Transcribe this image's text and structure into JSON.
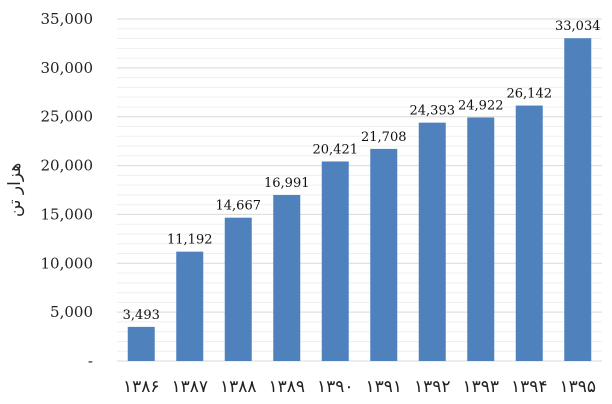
{
  "chart_data": {
    "type": "bar",
    "title": "",
    "xlabel": "",
    "ylabel": "هزار تن",
    "categories": [
      "۱۳۸۶",
      "۱۳۸۷",
      "۱۳۸۸",
      "۱۳۸۹",
      "۱۳۹۰",
      "۱۳۹۱",
      "۱۳۹۲",
      "۱۳۹۳",
      "۱۳۹۴",
      "۱۳۹۵"
    ],
    "values": [
      3493,
      11192,
      14667,
      16991,
      20421,
      21708,
      24393,
      24922,
      26142,
      33034
    ],
    "data_labels": [
      "3,493",
      "11,192",
      "14,667",
      "16,991",
      "20,421",
      "21,708",
      "24,393",
      "24,922",
      "26,142",
      "33,034"
    ],
    "ylim": [
      0,
      35000
    ],
    "yticks": [
      0,
      5000,
      10000,
      15000,
      20000,
      25000,
      30000,
      35000
    ],
    "ytick_labels": [
      "-",
      "5,000",
      "10,000",
      "15,000",
      "20,000",
      "25,000",
      "30,000",
      "35,000"
    ],
    "minor_grid_step": 1000,
    "grid": true,
    "legend": "none",
    "bar_color": "#4f81bd"
  }
}
